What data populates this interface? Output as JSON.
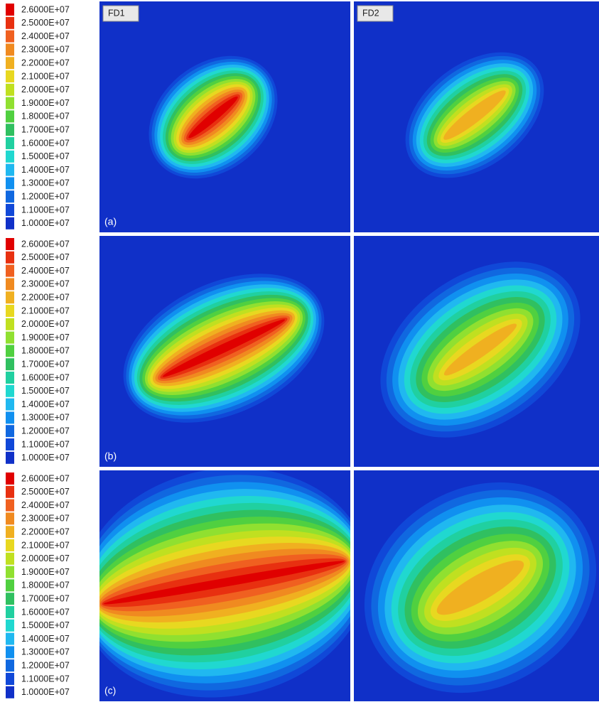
{
  "legend": {
    "labels": [
      "2.6000E+07",
      "2.5000E+07",
      "2.4000E+07",
      "2.3000E+07",
      "2.2000E+07",
      "2.1000E+07",
      "2.0000E+07",
      "1.9000E+07",
      "1.8000E+07",
      "1.7000E+07",
      "1.6000E+07",
      "1.5000E+07",
      "1.4000E+07",
      "1.3000E+07",
      "1.2000E+07",
      "1.1000E+07",
      "1.0000E+07"
    ],
    "colors": [
      "#e00000",
      "#e83010",
      "#f06020",
      "#f08a20",
      "#f0b020",
      "#e8d820",
      "#c0e020",
      "#90e030",
      "#50d040",
      "#30c060",
      "#20d0a0",
      "#20d8d0",
      "#20b8f0",
      "#1090f0",
      "#1068e0",
      "#1048d8",
      "#1030c8"
    ]
  },
  "columns": [
    "FD1",
    "FD2"
  ],
  "rows": [
    {
      "tag": "(a)"
    },
    {
      "tag": "(b)"
    },
    {
      "tag": "(c)"
    }
  ]
}
